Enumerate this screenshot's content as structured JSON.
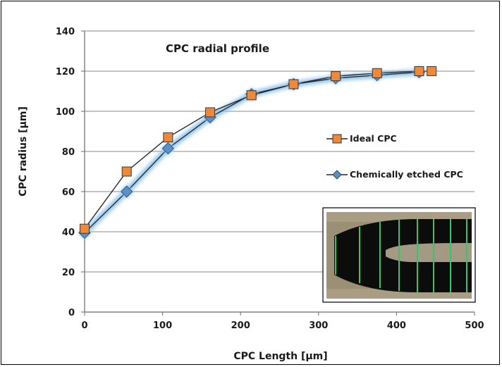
{
  "chart_data": {
    "type": "line",
    "title": "CPC radial profile",
    "xlabel": "CPC Length [μm]",
    "ylabel": "CPC radius [μm]",
    "xlim": [
      0,
      500
    ],
    "ylim": [
      0,
      140
    ],
    "x_ticks": [
      0,
      100,
      200,
      300,
      400,
      500
    ],
    "y_ticks": [
      0,
      20,
      40,
      60,
      80,
      100,
      120,
      140
    ],
    "grid": "horizontal",
    "legend_position": "right",
    "series": [
      {
        "name": "Ideal CPC",
        "marker": "square",
        "color": "#f0883a",
        "x": [
          0,
          54,
          107,
          161,
          214,
          268,
          322,
          375,
          429,
          445
        ],
        "y": [
          41.5,
          70,
          87,
          99.5,
          108,
          113.5,
          117.5,
          119,
          120,
          120
        ]
      },
      {
        "name": "Chemically etched CPC",
        "marker": "diamond",
        "color": "#5b8fc9",
        "x": [
          0,
          54,
          107,
          161,
          214,
          268,
          322,
          375,
          429
        ],
        "y": [
          39.5,
          60,
          81.5,
          97,
          108.5,
          113.5,
          116.5,
          118,
          119.5
        ]
      }
    ],
    "inset": "micrograph of etched CPC with green measurement lines"
  }
}
